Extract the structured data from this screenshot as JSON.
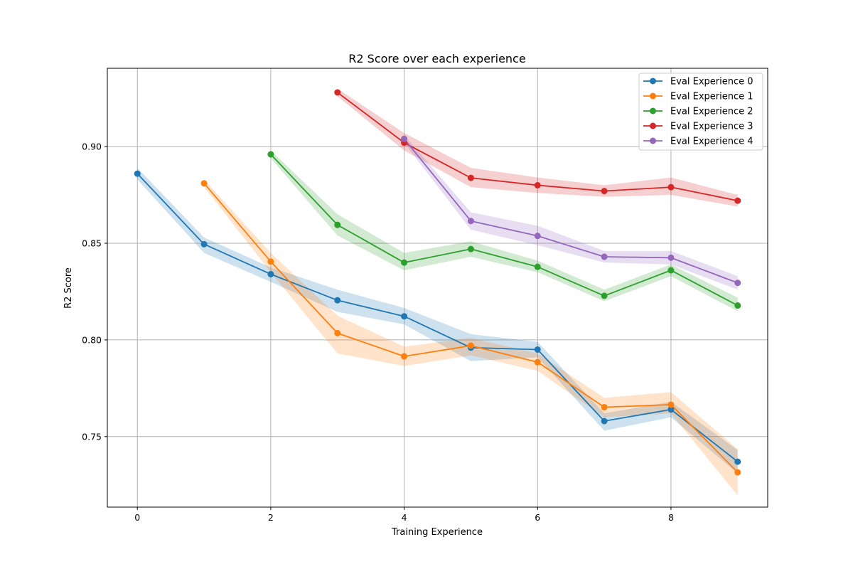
{
  "chart_data": {
    "type": "line",
    "title": "R2 Score over each experience",
    "xlabel": "Training Experience",
    "ylabel": "R2 Score",
    "xlim": [
      -0.45,
      9.45
    ],
    "ylim": [
      0.7135,
      0.9405
    ],
    "xticks": [
      0,
      2,
      4,
      6,
      8
    ],
    "yticks": [
      0.75,
      0.8,
      0.85,
      0.9
    ],
    "ytick_labels": [
      "0.75",
      "0.80",
      "0.85",
      "0.90"
    ],
    "grid": true,
    "legend_position": "top-right",
    "series": [
      {
        "name": "Eval Experience 0",
        "color": "#1f77b4",
        "x": [
          0,
          1,
          2,
          3,
          4,
          5,
          6,
          7,
          8,
          9
        ],
        "values": [
          0.886,
          0.8495,
          0.834,
          0.8205,
          0.8122,
          0.796,
          0.795,
          0.758,
          0.764,
          0.737
        ],
        "lower": [
          0.883,
          0.845,
          0.83,
          0.8145,
          0.808,
          0.789,
          0.791,
          0.753,
          0.76,
          0.731
        ],
        "upper": [
          0.889,
          0.853,
          0.8375,
          0.826,
          0.8165,
          0.803,
          0.799,
          0.762,
          0.768,
          0.743
        ]
      },
      {
        "name": "Eval Experience 1",
        "color": "#ff7f0e",
        "x": [
          1,
          2,
          3,
          4,
          5,
          6,
          7,
          8,
          9
        ],
        "values": [
          0.881,
          0.8405,
          0.8035,
          0.7915,
          0.797,
          0.7885,
          0.7652,
          0.7665,
          0.7315
        ],
        "lower": [
          0.879,
          0.835,
          0.793,
          0.7865,
          0.792,
          0.784,
          0.76,
          0.762,
          0.7195
        ],
        "upper": [
          0.883,
          0.845,
          0.8125,
          0.7965,
          0.801,
          0.793,
          0.77,
          0.773,
          0.7435
        ]
      },
      {
        "name": "Eval Experience 2",
        "color": "#2ca02c",
        "x": [
          2,
          3,
          4,
          5,
          6,
          7,
          8,
          9
        ],
        "values": [
          0.896,
          0.8595,
          0.84,
          0.847,
          0.8378,
          0.8228,
          0.836,
          0.8178
        ],
        "lower": [
          0.894,
          0.854,
          0.836,
          0.843,
          0.835,
          0.82,
          0.833,
          0.8148
        ],
        "upper": [
          0.898,
          0.865,
          0.845,
          0.851,
          0.841,
          0.826,
          0.839,
          0.8218
        ]
      },
      {
        "name": "Eval Experience 3",
        "color": "#d62728",
        "x": [
          3,
          4,
          5,
          6,
          7,
          8,
          9
        ],
        "values": [
          0.928,
          0.902,
          0.8838,
          0.88,
          0.877,
          0.879,
          0.872
        ],
        "lower": [
          0.926,
          0.898,
          0.879,
          0.876,
          0.874,
          0.875,
          0.869
        ],
        "upper": [
          0.93,
          0.907,
          0.889,
          0.884,
          0.88,
          0.884,
          0.875
        ]
      },
      {
        "name": "Eval Experience 4",
        "color": "#9467bd",
        "x": [
          4,
          5,
          6,
          7,
          8,
          9
        ],
        "values": [
          0.904,
          0.8615,
          0.8538,
          0.843,
          0.8425,
          0.8295
        ],
        "lower": [
          0.902,
          0.857,
          0.849,
          0.84,
          0.839,
          0.826
        ],
        "upper": [
          0.906,
          0.866,
          0.859,
          0.846,
          0.846,
          0.833
        ]
      }
    ]
  }
}
